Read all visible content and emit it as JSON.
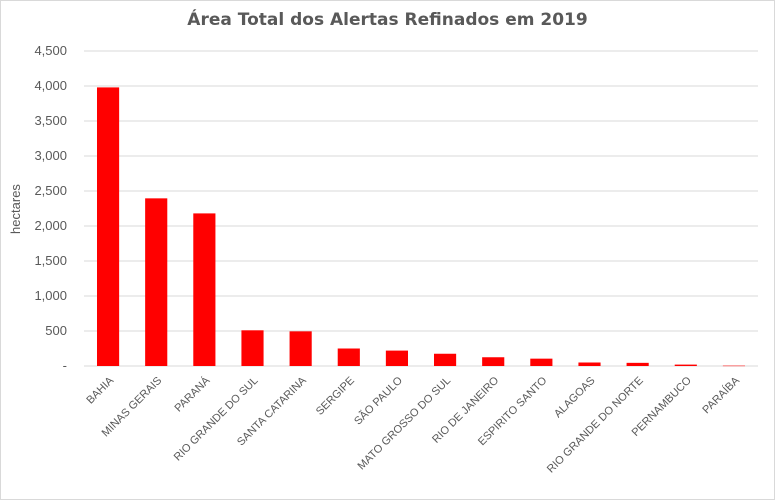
{
  "chart_data": {
    "type": "bar",
    "title": "Área Total dos Alertas Refinados em 2019",
    "xlabel": "",
    "ylabel": "hectares",
    "ylim": [
      0,
      4500
    ],
    "yticks": [
      0,
      500,
      1000,
      1500,
      2000,
      2500,
      3000,
      3500,
      4000,
      4500
    ],
    "ytick_labels": [
      "-",
      "500",
      "1,000",
      "1,500",
      "2,000",
      "2,500",
      "3,000",
      "3,500",
      "4,000",
      "4,500"
    ],
    "grid": true,
    "legend": "none",
    "bar_color": "#ff0000",
    "categories": [
      "BAHIA",
      "MINAS GERAIS",
      "PARANÁ",
      "RIO GRANDE DO SUL",
      "SANTA CATARINA",
      "SERGIPE",
      "SÃO PAULO",
      "MATO GROSSO DO SUL",
      "RIO DE JANEIRO",
      "ESPIRITO SANTO",
      "ALAGOAS",
      "RIO GRANDE DO NORTE",
      "PERNAMBUCO",
      "PARAÍBA"
    ],
    "values": [
      3980,
      2395,
      2180,
      510,
      495,
      250,
      220,
      175,
      125,
      105,
      50,
      45,
      20,
      5
    ]
  }
}
